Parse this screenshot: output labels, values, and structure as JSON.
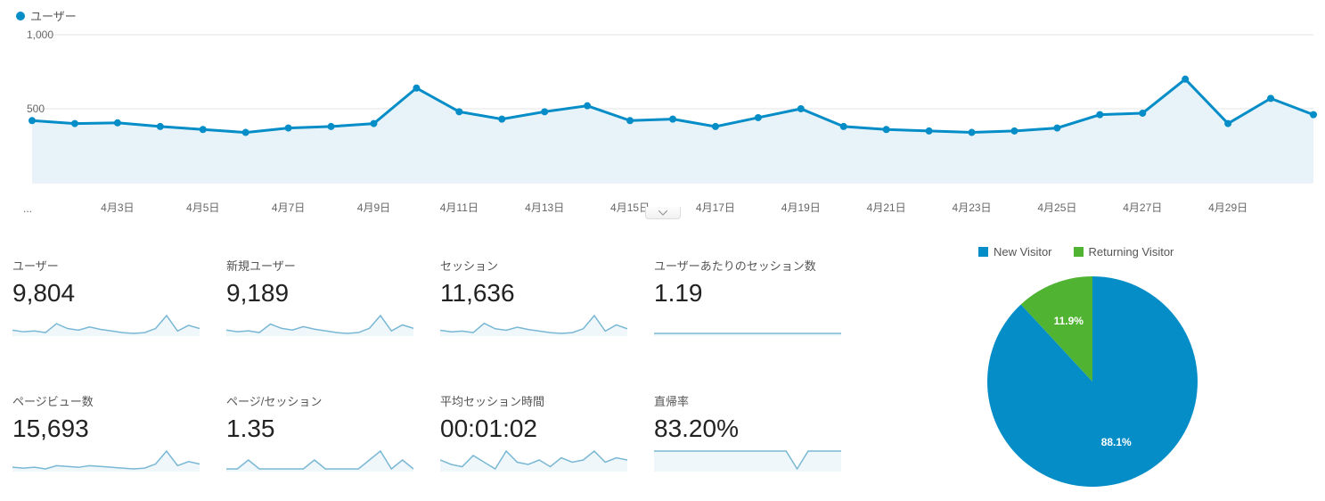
{
  "colors": {
    "primary_blue": "#058dc7",
    "area_fill": "#e7f3f9",
    "spark_line": "#79b8d4",
    "spark_fill": "#eff7fb",
    "text_muted": "#666666",
    "grid_line": "#e5e5e5",
    "pie_new": "#058dc7",
    "pie_return": "#50b432",
    "bg": "#ffffff"
  },
  "main_chart": {
    "type": "line-area",
    "legend_label": "ユーザー",
    "yticks": [
      500,
      1000
    ],
    "ylim": [
      0,
      1000
    ],
    "xtick_labels": [
      "4月3日",
      "4月5日",
      "4月7日",
      "4月9日",
      "4月11日",
      "4月13日",
      "4月15日",
      "4月17日",
      "4月19日",
      "4月21日",
      "4月23日",
      "4月25日",
      "4月27日",
      "4月29日"
    ],
    "xtick_ellipsis": "...",
    "series": [
      420,
      400,
      405,
      380,
      360,
      340,
      370,
      380,
      400,
      640,
      480,
      430,
      480,
      520,
      420,
      430,
      380,
      440,
      500,
      380,
      360,
      350,
      340,
      350,
      370,
      460,
      470,
      700,
      400,
      570,
      460
    ],
    "line_width": 3,
    "marker_radius": 4,
    "line_color": "#058dc7",
    "fill_color": "#e7f3f9",
    "grid_color": "#e5e5e5"
  },
  "metrics": [
    {
      "id": "users",
      "label": "ユーザー",
      "value": "9,804",
      "spark": [
        20,
        18,
        19,
        17,
        28,
        22,
        20,
        24,
        21,
        19,
        17,
        16,
        17,
        22,
        38,
        19,
        26,
        22
      ]
    },
    {
      "id": "new-users",
      "label": "新規ユーザー",
      "value": "9,189",
      "spark": [
        19,
        17,
        18,
        16,
        26,
        21,
        19,
        23,
        20,
        18,
        16,
        15,
        16,
        21,
        36,
        18,
        25,
        21
      ]
    },
    {
      "id": "sessions",
      "label": "セッション",
      "value": "11,636",
      "spark": [
        21,
        19,
        20,
        18,
        30,
        23,
        21,
        25,
        22,
        20,
        18,
        17,
        18,
        23,
        40,
        20,
        28,
        23
      ]
    },
    {
      "id": "sess-per-user",
      "label": "ユーザーあたりのセッション数",
      "value": "1.19",
      "spark": [
        18,
        18,
        18,
        18,
        18,
        18,
        18,
        18,
        18,
        18,
        18,
        18,
        18,
        18,
        18,
        18,
        18,
        18
      ]
    },
    {
      "id": "pageviews",
      "label": "ページビュー数",
      "value": "15,693",
      "spark": [
        20,
        19,
        20,
        18,
        22,
        21,
        20,
        22,
        21,
        20,
        19,
        18,
        19,
        24,
        40,
        22,
        27,
        24
      ]
    },
    {
      "id": "pages-per-sess",
      "label": "ページ/セッション",
      "value": "1.35",
      "spark": [
        18,
        18,
        19,
        18,
        18,
        18,
        18,
        18,
        19,
        18,
        18,
        18,
        18,
        19,
        20,
        18,
        19,
        18
      ]
    },
    {
      "id": "avg-duration",
      "label": "平均セッション時間",
      "value": "00:01:02",
      "spark": [
        20,
        18,
        17,
        22,
        19,
        16,
        24,
        19,
        18,
        20,
        17,
        21,
        19,
        20,
        24,
        19,
        21,
        20
      ]
    },
    {
      "id": "bounce-rate",
      "label": "直帰率",
      "value": "83.20%",
      "spark": [
        21,
        21,
        21,
        21,
        21,
        21,
        21,
        21,
        21,
        21,
        21,
        21,
        21,
        12,
        21,
        21,
        21,
        21
      ]
    }
  ],
  "pie": {
    "type": "pie",
    "legend": [
      {
        "label": "New Visitor",
        "color": "#058dc7"
      },
      {
        "label": "Returning Visitor",
        "color": "#50b432"
      }
    ],
    "slices": [
      {
        "label": "88.1%",
        "value": 88.1,
        "color": "#058dc7"
      },
      {
        "label": "11.9%",
        "value": 11.9,
        "color": "#50b432"
      }
    ],
    "label_color": "#ffffff",
    "label_fontsize": 12
  }
}
